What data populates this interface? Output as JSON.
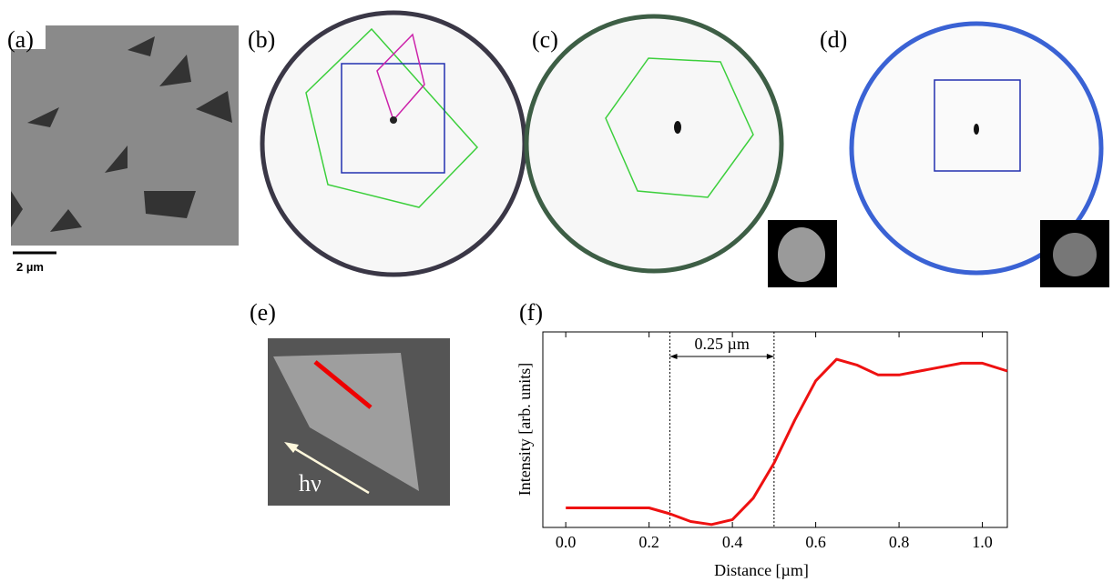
{
  "panels": [
    "(a)",
    "(b)",
    "(c)",
    "(d)",
    "(e)",
    "(f)"
  ],
  "scale_bar": "2 µm",
  "arrow_label": "hν",
  "chart_data": {
    "type": "line",
    "xlabel": "Distance [µm]",
    "ylabel": "Intensity [arb. units]",
    "annotation": "0.25 µm",
    "vlines": [
      0.25,
      0.5
    ],
    "x": [
      0,
      0.05,
      0.1,
      0.15,
      0.2,
      0.25,
      0.3,
      0.35,
      0.4,
      0.45,
      0.5,
      0.55,
      0.6,
      0.65,
      0.7,
      0.75,
      0.8,
      0.85,
      0.9,
      0.95,
      1.0,
      1.06
    ],
    "values": [
      0.1,
      0.1,
      0.1,
      0.1,
      0.1,
      0.07,
      0.03,
      0.015,
      0.04,
      0.15,
      0.33,
      0.55,
      0.75,
      0.86,
      0.83,
      0.78,
      0.78,
      0.8,
      0.82,
      0.84,
      0.84,
      0.8
    ],
    "color": "#ee1111",
    "xlim": [
      -0.055,
      1.06
    ],
    "ylim": [
      0,
      1
    ],
    "xticks": [
      {
        "value": 0,
        "label": "0.0"
      },
      0.2,
      0.4,
      0.6,
      0.8,
      {
        "value": 1,
        "label": "1.0"
      }
    ]
  }
}
